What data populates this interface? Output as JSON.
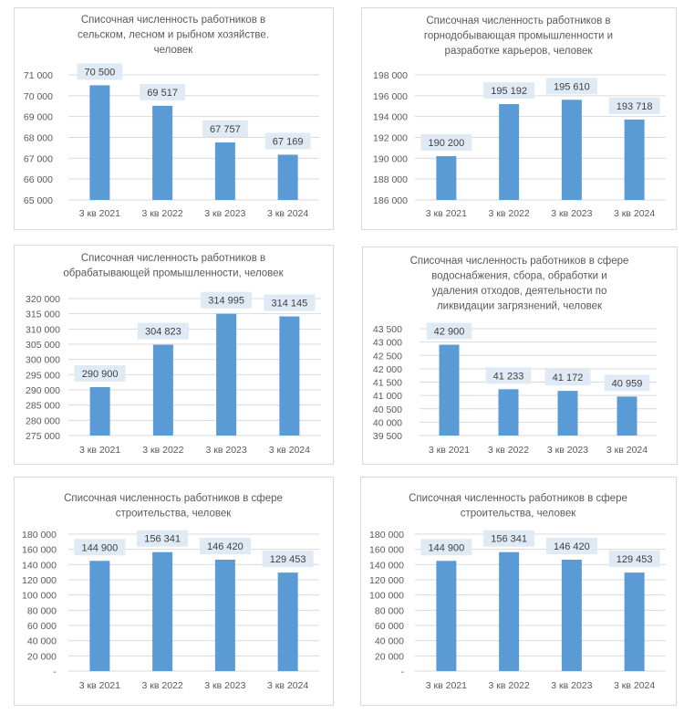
{
  "colors": {
    "bar": "#5b9bd5",
    "label_bg": "#dfeaf5",
    "grid": "#d9d9d9",
    "border": "#d9d9d9",
    "text": "#595959"
  },
  "chart_data": [
    {
      "type": "bar",
      "title": [
        "Списочная численность работников  в",
        "сельском, лесном и рыбном хозяйстве.",
        "человек"
      ],
      "categories": [
        "3 кв 2021",
        "3 кв 2022",
        "3 кв 2023",
        "3 кв 2024"
      ],
      "values": [
        70500,
        69517,
        67757,
        67169
      ],
      "ylim": [
        65000,
        71000
      ],
      "ystep": 1000,
      "grid": true
    },
    {
      "type": "bar",
      "title": [
        "Списочная численность работников в",
        "горнодобывающая промышленности и",
        "разработке карьеров, человек"
      ],
      "categories": [
        "3 кв 2021",
        "3 кв 2022",
        "3 кв 2023",
        "3 кв 2024"
      ],
      "values": [
        190200,
        195192,
        195610,
        193718
      ],
      "ylim": [
        186000,
        198000
      ],
      "ystep": 2000,
      "grid": true
    },
    {
      "type": "bar",
      "title": [
        "Списочная численность работников в",
        "обрабатывающей промышленности, человек"
      ],
      "categories": [
        "3 кв 2021",
        "3 кв 2022",
        "3 кв 2023",
        "3 кв 2024"
      ],
      "values": [
        290900,
        304823,
        314995,
        314145
      ],
      "ylim": [
        275000,
        320000
      ],
      "ystep": 5000,
      "grid": true
    },
    {
      "type": "bar",
      "title": [
        "Списочная численность работников в сфере",
        "водоснабжения, сбора, обработки  и",
        "удаления отходов, деятельности по",
        "ликвидации загрязнений, человек"
      ],
      "categories": [
        "3 кв 2021",
        "3 кв 2022",
        "3 кв 2023",
        "3 кв 2024"
      ],
      "values": [
        42900,
        41233,
        41172,
        40959
      ],
      "ylim": [
        39500,
        43500
      ],
      "ystep": 500,
      "grid": true
    },
    {
      "type": "bar",
      "title": [
        "Списочная численность работников в сфере",
        "строительства, человек"
      ],
      "categories": [
        "3 кв 2021",
        "3 кв 2022",
        "3 кв 2023",
        "3 кв 2024"
      ],
      "values": [
        144900,
        156341,
        146420,
        129453
      ],
      "ylim": [
        0,
        180000
      ],
      "ystep": 20000,
      "grid": true
    },
    {
      "type": "bar",
      "title": [
        "Списочная численность работников в сфере",
        "строительства, человек"
      ],
      "categories": [
        "3 кв 2021",
        "3 кв 2022",
        "3 кв 2023",
        "3 кв 2024"
      ],
      "values": [
        144900,
        156341,
        146420,
        129453
      ],
      "ylim": [
        0,
        180000
      ],
      "ystep": 20000,
      "grid": true
    }
  ]
}
